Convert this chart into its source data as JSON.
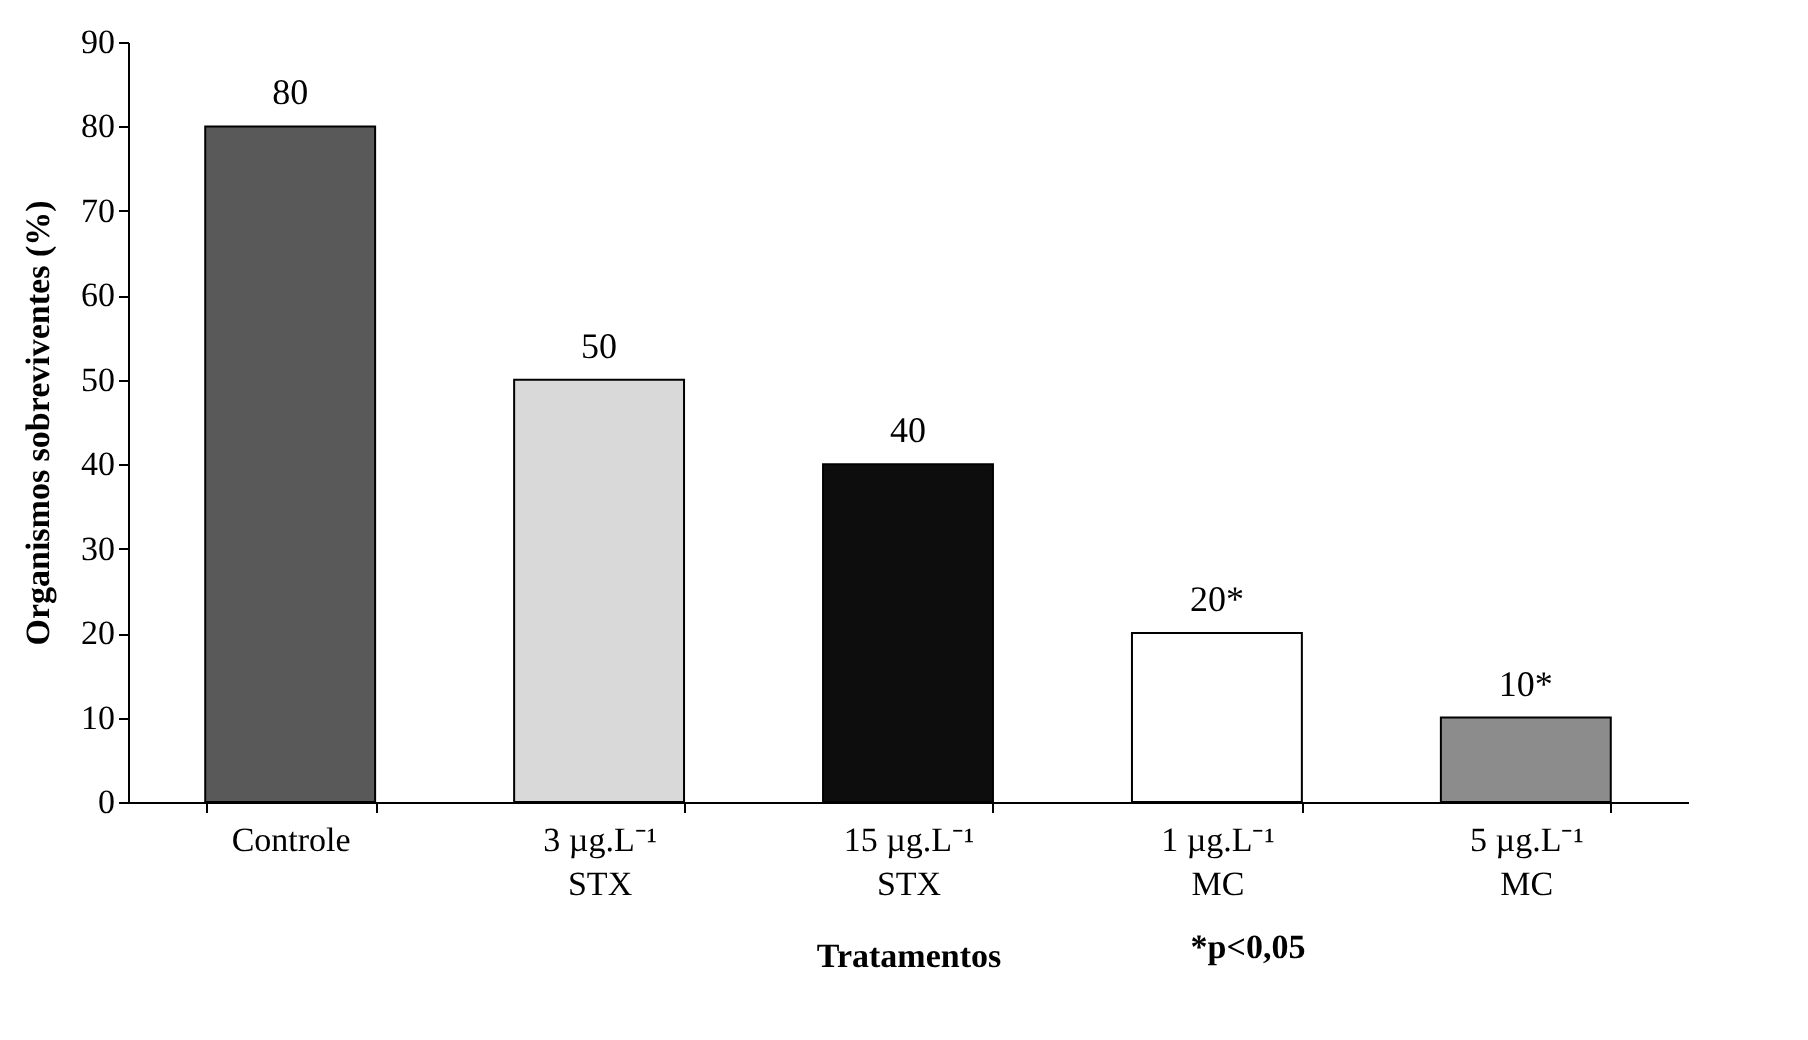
{
  "chart_data": {
    "type": "bar",
    "categories": [
      "Controle",
      "3 µg.L⁻¹\nSTX",
      "15 µg.L⁻¹\nSTX",
      "1 µg.L⁻¹\nMC",
      "5 µg.L⁻¹\nMC"
    ],
    "values": [
      80,
      50,
      40,
      20,
      10
    ],
    "colors": [
      "#595959",
      "#d9d9d9",
      "#0d0d0d",
      "#ffffff",
      "#8c8c8c"
    ],
    "value_labels": [
      "80",
      "50",
      "40",
      "20*",
      "10*"
    ],
    "xlabel": "Tratamentos",
    "ylabel": "Organismos sobreviventes (%)",
    "annotations": [
      "*p<0,05"
    ],
    "ylim": [
      0,
      90
    ],
    "yticks": [
      0,
      10,
      20,
      30,
      40,
      50,
      60,
      70,
      80,
      90
    ],
    "grid": false
  }
}
